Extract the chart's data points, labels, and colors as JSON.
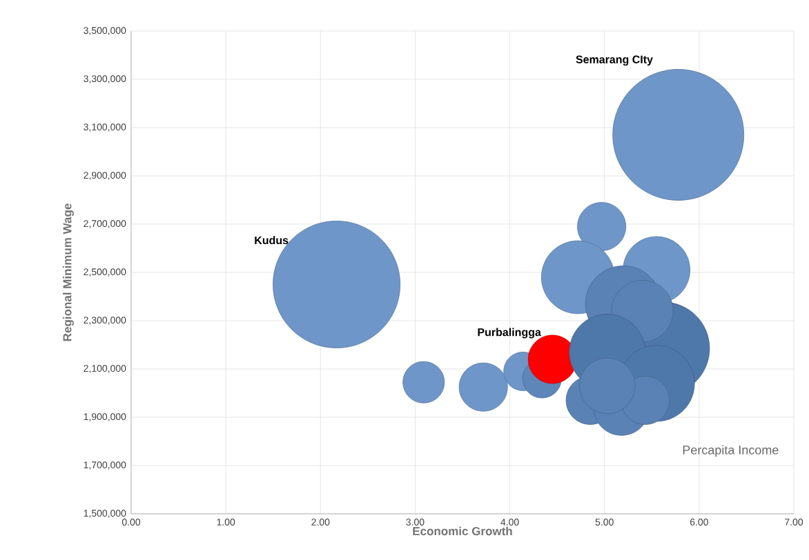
{
  "chart_data": {
    "type": "bubble",
    "xlabel": "Economic Growth",
    "ylabel": "Regional Minimum Wage",
    "x": [
      5.78,
      2.17,
      3.09,
      3.72,
      4.14,
      4.34,
      4.45,
      4.97,
      4.72,
      5.55,
      5.2,
      5.62,
      5.4,
      5.03,
      5.55,
      4.85,
      5.18,
      5.43,
      5.03
    ],
    "values": [
      3070000,
      2450000,
      2045000,
      2025000,
      2090000,
      2060000,
      2140000,
      2690000,
      2480000,
      2510000,
      2370000,
      2185000,
      2340000,
      2170000,
      2040000,
      1970000,
      1940000,
      1970000,
      2030000
    ],
    "sizes": [
      1,
      0.94,
      0.1,
      0.136,
      0.087,
      0.087,
      0.136,
      0.136,
      0.31,
      0.26,
      0.335,
      0.5,
      0.22,
      0.335,
      0.335,
      0.136,
      0.18,
      0.136,
      0.18
    ],
    "colors": [
      "#6f96c8",
      "#6f96c8",
      "#6f96c8",
      "#6f96c8",
      "#6f96c8",
      "#5f86b8",
      "#ff0000",
      "#6f96c8",
      "#6f96c8",
      "#6f96c8",
      "#5a82b4",
      "#4f78aa",
      "#5a82b4",
      "#4f78aa",
      "#4f78aa",
      "#5a82b4",
      "#5a82b4",
      "#5a82b4",
      "#5a82b4"
    ],
    "xlim": [
      0,
      7
    ],
    "ylim": [
      1500000,
      3500000
    ],
    "xticks": [
      {
        "value": 0,
        "label": "0.00"
      },
      {
        "value": 1,
        "label": "1.00"
      },
      {
        "value": 2,
        "label": "2.00"
      },
      {
        "value": 3,
        "label": "3.00"
      },
      {
        "value": 4,
        "label": "4.00"
      },
      {
        "value": 5,
        "label": "5.00"
      },
      {
        "value": 6,
        "label": "6.00"
      },
      {
        "value": 7,
        "label": "7.00"
      }
    ],
    "yticks": [
      {
        "value": 1500000,
        "label": "1,500,000"
      },
      {
        "value": 1700000,
        "label": "1,700,000"
      },
      {
        "value": 1900000,
        "label": "1,900,000"
      },
      {
        "value": 2100000,
        "label": "2,100,000"
      },
      {
        "value": 2300000,
        "label": "2,300,000"
      },
      {
        "value": 2500000,
        "label": "2,500,000"
      },
      {
        "value": 2700000,
        "label": "2,700,000"
      },
      {
        "value": 2900000,
        "label": "2,900,000"
      },
      {
        "value": 3100000,
        "label": "3,100,000"
      },
      {
        "value": 3300000,
        "label": "3,300,000"
      },
      {
        "value": 3500000,
        "label": "3,500,000"
      }
    ],
    "grid": true,
    "annotations": [
      "Semarang CIty",
      "Kudus",
      {
        "text": "Purbalingga",
        "x": 4.45,
        "y": 2140000
      },
      "Percapita Income"
    ]
  }
}
